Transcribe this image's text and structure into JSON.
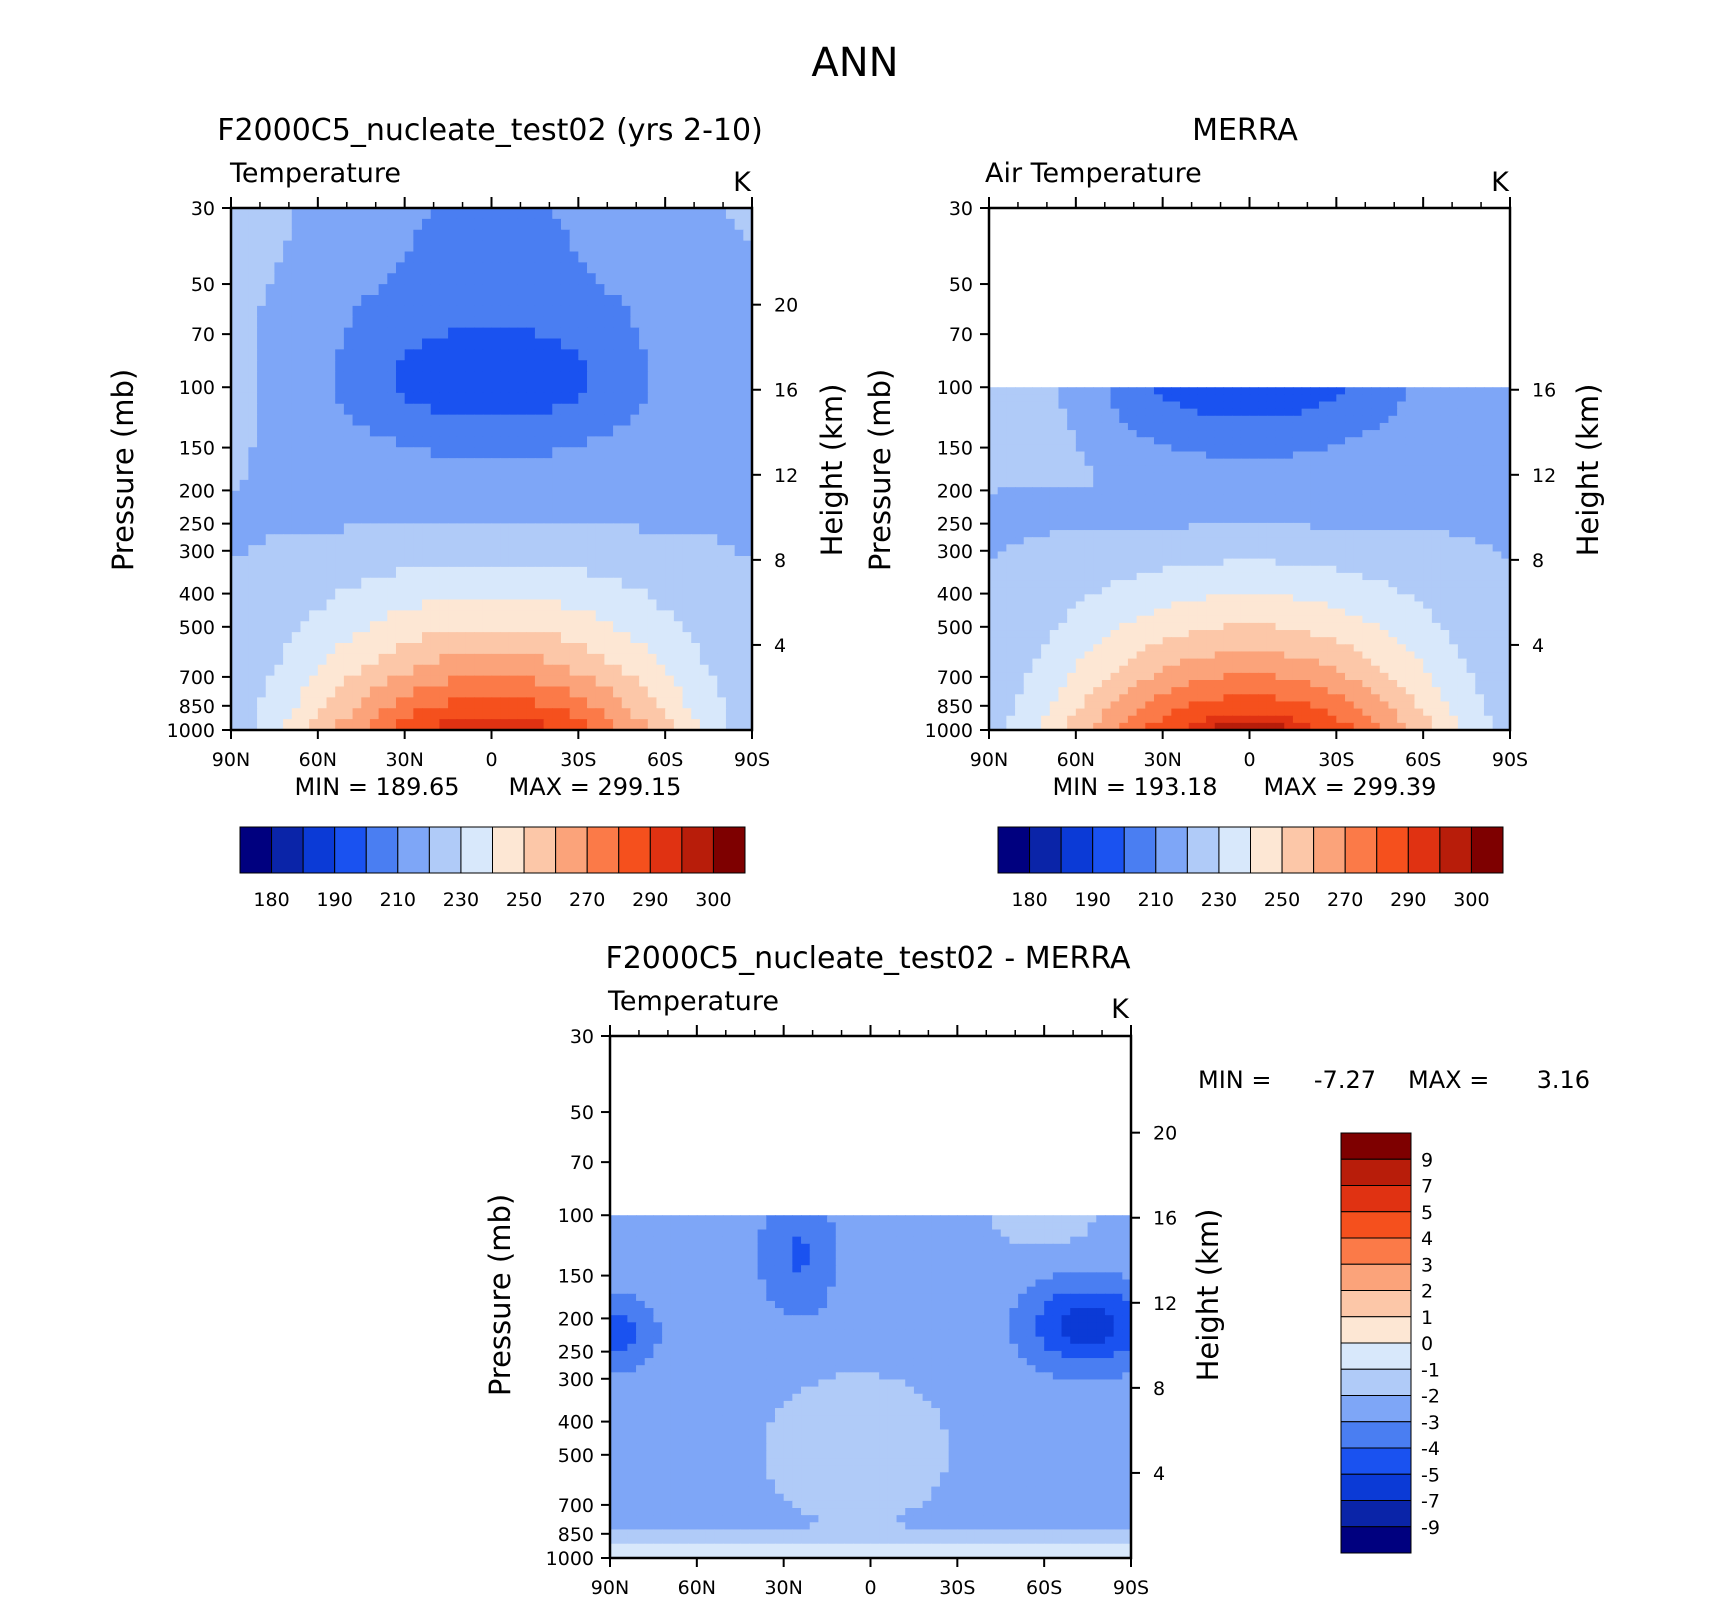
{
  "main_title": "ANN",
  "chart_data": [
    {
      "type": "heatmap",
      "title": "F2000C5_nucleate_test02 (yrs 2-10)",
      "subtitle_left": "Temperature",
      "units": "K",
      "ylabel": "Pressure (mb)",
      "ylabel_right": "Height (km)",
      "x_ticks": [
        "90N",
        "60N",
        "30N",
        "0",
        "30S",
        "60S",
        "90S"
      ],
      "y_ticks": [
        "30",
        "50",
        "70",
        "100",
        "150",
        "200",
        "250",
        "300",
        "400",
        "500",
        "700",
        "850",
        "1000"
      ],
      "height_ticks": [
        "20",
        "16",
        "12",
        "8",
        "4"
      ],
      "min_label": "MIN = 189.65",
      "max_label": "MAX = 299.15",
      "min": 189.65,
      "max": 299.15,
      "levels": [
        180,
        185,
        190,
        200,
        210,
        220,
        230,
        240,
        250,
        260,
        270,
        280,
        290,
        295,
        300
      ],
      "colorbar_labels": [
        "180",
        "190",
        "210",
        "230",
        "250",
        "270",
        "290",
        "300"
      ],
      "data_top_mb": 30
    },
    {
      "type": "heatmap",
      "title": "MERRA",
      "subtitle_left": "Air Temperature",
      "units": "K",
      "ylabel": "Pressure (mb)",
      "ylabel_right": "Height (km)",
      "x_ticks": [
        "90N",
        "60N",
        "30N",
        "0",
        "30S",
        "60S",
        "90S"
      ],
      "y_ticks": [
        "30",
        "50",
        "70",
        "100",
        "150",
        "200",
        "250",
        "300",
        "400",
        "500",
        "700",
        "850",
        "1000"
      ],
      "height_ticks": [
        "16",
        "12",
        "8",
        "4"
      ],
      "min_label": "MIN = 193.18",
      "max_label": "MAX = 299.39",
      "min": 193.18,
      "max": 299.39,
      "levels": [
        180,
        185,
        190,
        200,
        210,
        220,
        230,
        240,
        250,
        260,
        270,
        280,
        290,
        295,
        300
      ],
      "colorbar_labels": [
        "180",
        "190",
        "210",
        "230",
        "250",
        "270",
        "290",
        "300"
      ],
      "data_top_mb": 100
    },
    {
      "type": "heatmap",
      "title": "F2000C5_nucleate_test02 - MERRA",
      "subtitle_left": "Temperature",
      "units": "K",
      "ylabel": "Pressure (mb)",
      "ylabel_right": "Height (km)",
      "x_ticks": [
        "90N",
        "60N",
        "30N",
        "0",
        "30S",
        "60S",
        "90S"
      ],
      "y_ticks": [
        "30",
        "50",
        "70",
        "100",
        "150",
        "200",
        "250",
        "300",
        "400",
        "500",
        "700",
        "850",
        "1000"
      ],
      "height_ticks": [
        "20",
        "16",
        "12",
        "8",
        "4"
      ],
      "min_label": "MIN =",
      "min_value": "-7.27",
      "max_label": "MAX =",
      "max_value": "3.16",
      "min": -7.27,
      "max": 3.16,
      "levels": [
        -9,
        -7,
        -5,
        -4,
        -3,
        -2,
        -1,
        0,
        1,
        2,
        3,
        4,
        5,
        7,
        9
      ],
      "colorbar_labels": [
        "9",
        "7",
        "5",
        "4",
        "3",
        "2",
        "1",
        "0",
        "-1",
        "-2",
        "-3",
        "-4",
        "-5",
        "-7",
        "-9"
      ],
      "data_top_mb": 100
    }
  ],
  "colors": {
    "palette": [
      "#00007f",
      "#0a24a8",
      "#0b3ad6",
      "#1a52f0",
      "#4a7ef2",
      "#7ea6f7",
      "#b0cbf8",
      "#d8e8fb",
      "#fde7d4",
      "#fcc7a8",
      "#fba37a",
      "#fb7a48",
      "#f5501d",
      "#e03212",
      "#b81d0a",
      "#7e0000"
    ]
  }
}
